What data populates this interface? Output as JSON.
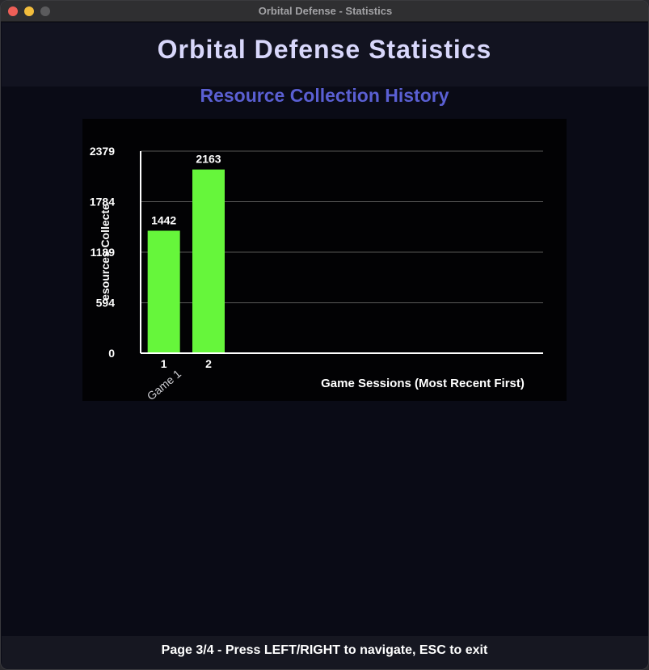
{
  "window": {
    "title": "Orbital Defense - Statistics",
    "controls": [
      "close",
      "minimize",
      "maximize"
    ]
  },
  "header": {
    "title": "Orbital Defense Statistics"
  },
  "section": {
    "title": "Resource Collection History"
  },
  "colors": {
    "background": "#0a0b16",
    "title": "#d8d7fb",
    "section_title": "#5a5fd2",
    "bar": "#66f63b",
    "gridline": "#555555",
    "axis": "#ffffff",
    "text": "#ffffff"
  },
  "chart_data": {
    "type": "bar",
    "title": "",
    "xlabel": "Game Sessions (Most Recent First)",
    "ylabel": "esources Collecte",
    "categories": [
      "1",
      "2"
    ],
    "values": [
      1442,
      2163
    ],
    "value_labels": [
      "1442",
      "2163"
    ],
    "yticks": [
      0,
      594,
      1189,
      1784,
      2379
    ],
    "ytick_labels": [
      "0",
      "594",
      "1189",
      "1784",
      "2379"
    ],
    "ylim": [
      0,
      2379
    ],
    "x_slots": 9,
    "extra_label": "Game 1",
    "grid": true,
    "legend": "none"
  },
  "footer": {
    "text": "Page 3/4 - Press LEFT/RIGHT to navigate, ESC to exit"
  }
}
